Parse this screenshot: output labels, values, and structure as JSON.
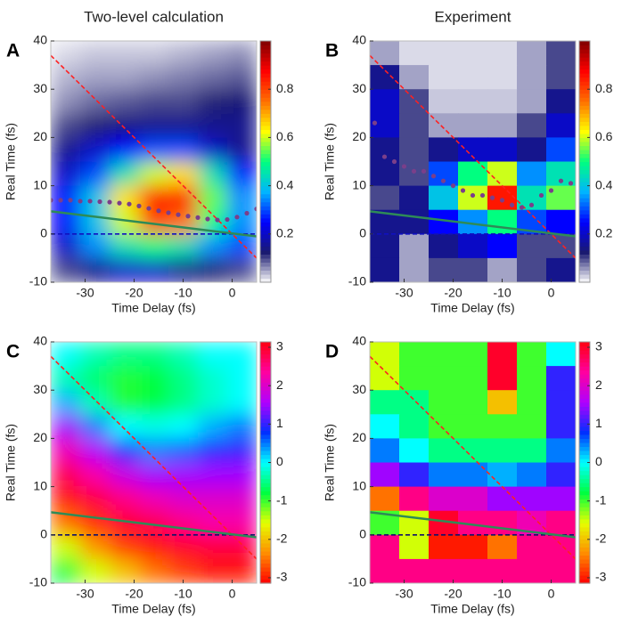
{
  "chart_data": [
    {
      "type": "heatmap",
      "panel": "A",
      "title": "Two-level calculation",
      "xlabel": "Time Delay (fs)",
      "ylabel": "Real Time (fs)",
      "xlim": [
        -37,
        5
      ],
      "ylim": [
        -10,
        40
      ],
      "xticks": [
        -30,
        -20,
        -10,
        0
      ],
      "yticks": [
        -10,
        0,
        10,
        20,
        30,
        40
      ],
      "x_edges": [
        -37,
        -31,
        -25,
        -19,
        -13,
        -7,
        -1,
        5
      ],
      "y_edges": [
        40,
        35,
        30,
        25,
        20,
        15,
        10,
        5,
        0,
        -5,
        -10
      ],
      "z": [
        [
          0.02,
          0.03,
          0.03,
          0.03,
          0.04,
          0.05,
          0.06
        ],
        [
          0.04,
          0.05,
          0.05,
          0.06,
          0.07,
          0.08,
          0.09
        ],
        [
          0.06,
          0.08,
          0.09,
          0.1,
          0.1,
          0.12,
          0.13
        ],
        [
          0.1,
          0.12,
          0.14,
          0.15,
          0.15,
          0.15,
          0.15
        ],
        [
          0.15,
          0.2,
          0.25,
          0.3,
          0.3,
          0.2,
          0.15
        ],
        [
          0.2,
          0.3,
          0.45,
          0.6,
          0.65,
          0.45,
          0.25
        ],
        [
          0.25,
          0.4,
          0.65,
          0.85,
          0.85,
          0.55,
          0.35
        ],
        [
          0.25,
          0.4,
          0.6,
          0.8,
          0.75,
          0.5,
          0.35
        ],
        [
          0.2,
          0.35,
          0.45,
          0.5,
          0.45,
          0.35,
          0.3
        ],
        [
          0.1,
          0.15,
          0.2,
          0.2,
          0.15,
          0.12,
          0.1
        ]
      ],
      "smooth": true,
      "clim": [
        0,
        1
      ],
      "cticks": [
        0.2,
        0.4,
        0.6,
        0.8
      ],
      "colormap": [
        "#ffffff",
        "#1a1a70",
        "#0000ff",
        "#00b4ff",
        "#00ff80",
        "#ffff00",
        "#ff7000",
        "#ff0000",
        "#800000"
      ],
      "lines": [
        {
          "style": "dash",
          "color": "#ff2020",
          "x": [
            -37,
            5
          ],
          "values": [
            37,
            -5
          ]
        },
        {
          "style": "dash",
          "color": "#1010c0",
          "x": [
            -37,
            5
          ],
          "values": [
            0,
            0
          ]
        },
        {
          "style": "solid",
          "color": "#2e8b57",
          "x": [
            -37,
            5
          ],
          "values": [
            4.7,
            -0.5
          ]
        },
        {
          "style": "dots",
          "color": "#7a3f8a",
          "x": [
            -37,
            -35,
            -33,
            -31,
            -29,
            -27,
            -25,
            -23,
            -21,
            -19,
            -17,
            -15,
            -13,
            -11,
            -9,
            -7,
            -5,
            -3,
            -1,
            1,
            3,
            5
          ],
          "values": [
            7,
            7,
            7,
            6.8,
            6.8,
            6.7,
            6.6,
            6.4,
            6.2,
            5.8,
            5.3,
            4.8,
            4.4,
            4,
            3.7,
            3.4,
            3.1,
            2.9,
            3,
            3.5,
            4.3,
            5.2
          ]
        }
      ]
    },
    {
      "type": "heatmap",
      "panel": "B",
      "title": "Experiment",
      "xlabel": "Time Delay (fs)",
      "ylabel": "Real Time (fs)",
      "xlim": [
        -37,
        5
      ],
      "ylim": [
        -10,
        40
      ],
      "xticks": [
        -30,
        -20,
        -10,
        0
      ],
      "yticks": [
        -10,
        0,
        10,
        20,
        30,
        40
      ],
      "x_edges": [
        -37,
        -31,
        -25,
        -19,
        -13,
        -7,
        -1,
        5
      ],
      "y_edges": [
        40,
        35,
        30,
        25,
        20,
        15,
        10,
        5,
        0,
        -5,
        -10
      ],
      "z": [
        [
          0.05,
          0.02,
          0.02,
          0.02,
          0.02,
          0.05,
          0.1
        ],
        [
          0.15,
          0.05,
          0.02,
          0.02,
          0.02,
          0.05,
          0.1
        ],
        [
          0.2,
          0.1,
          0.03,
          0.03,
          0.03,
          0.05,
          0.15
        ],
        [
          0.2,
          0.1,
          0.05,
          0.05,
          0.05,
          0.1,
          0.2
        ],
        [
          0.15,
          0.1,
          0.15,
          0.2,
          0.2,
          0.15,
          0.3
        ],
        [
          0.15,
          0.1,
          0.3,
          0.5,
          0.6,
          0.35,
          0.45
        ],
        [
          0.1,
          0.15,
          0.4,
          0.6,
          0.85,
          0.45,
          0.55
        ],
        [
          0.15,
          0.15,
          0.25,
          0.35,
          0.5,
          0.3,
          0.25
        ],
        [
          0.15,
          0.05,
          0.15,
          0.2,
          0.25,
          0.1,
          0.1
        ],
        [
          0.15,
          0.05,
          0.1,
          0.1,
          0.05,
          0.1,
          0.15
        ]
      ],
      "smooth": false,
      "clim": [
        0,
        1
      ],
      "cticks": [
        0.2,
        0.4,
        0.6,
        0.8
      ],
      "colormap": [
        "#ffffff",
        "#1a1a70",
        "#0000ff",
        "#00b4ff",
        "#00ff80",
        "#ffff00",
        "#ff7000",
        "#ff0000",
        "#800000"
      ],
      "lines": [
        {
          "style": "dash",
          "color": "#ff2020",
          "x": [
            -37,
            5
          ],
          "values": [
            37,
            -5
          ]
        },
        {
          "style": "dash",
          "color": "#1010c0",
          "x": [
            -37,
            5
          ],
          "values": [
            0,
            0
          ]
        },
        {
          "style": "solid",
          "color": "#2e8b57",
          "x": [
            -37,
            5
          ],
          "values": [
            4.7,
            -0.5
          ]
        },
        {
          "style": "dots",
          "color": "#7a3f8a",
          "x": [
            -36,
            -34,
            -32,
            -30,
            -28,
            -26,
            -24,
            -22,
            -20,
            -18,
            -16,
            -14,
            -12,
            -10,
            -8,
            -6,
            -4,
            -2,
            0,
            2,
            4
          ],
          "values": [
            23,
            16,
            15,
            14,
            13,
            13,
            12,
            11,
            10,
            9,
            8,
            8,
            7.5,
            7,
            6,
            5.5,
            6,
            8,
            9,
            11,
            10.5
          ]
        }
      ]
    },
    {
      "type": "heatmap",
      "panel": "C",
      "xlabel": "Time Delay (fs)",
      "ylabel": "Real Time (fs)",
      "xlim": [
        -37,
        5
      ],
      "ylim": [
        -10,
        40
      ],
      "xticks": [
        -30,
        -20,
        -10,
        0
      ],
      "yticks": [
        -10,
        0,
        10,
        20,
        30,
        40
      ],
      "x_edges": [
        -37,
        -31,
        -25,
        -19,
        -13,
        -7,
        -1,
        5
      ],
      "y_edges": [
        40,
        35,
        30,
        25,
        20,
        15,
        10,
        5,
        0,
        -5,
        -10
      ],
      "z": [
        [
          0,
          -0.3,
          -0.5,
          -0.5,
          -0.3,
          0,
          0
        ],
        [
          -0.3,
          -0.6,
          -0.9,
          -0.8,
          -0.5,
          -0.2,
          0
        ],
        [
          0.3,
          -0.3,
          -0.9,
          -0.8,
          -0.5,
          -0.2,
          0
        ],
        [
          1.5,
          0.5,
          0,
          -0.1,
          0,
          0.3,
          0.5
        ],
        [
          2.2,
          1.6,
          0.8,
          0.5,
          0.6,
          0.9,
          1
        ],
        [
          2.8,
          2.3,
          1.8,
          1.5,
          1.5,
          1.5,
          1.5
        ],
        [
          -3,
          2.9,
          2.5,
          2.2,
          2,
          2,
          2
        ],
        [
          -2.5,
          -2.9,
          3,
          2.8,
          2.5,
          2.3,
          2.3
        ],
        [
          -1.5,
          -2.3,
          -2.8,
          -3,
          3,
          2.9,
          2.9
        ],
        [
          -0.8,
          -1.5,
          -2,
          -2.5,
          -2.8,
          -3,
          -3
        ]
      ],
      "smooth": true,
      "clim": [
        -3.14,
        3.14
      ],
      "cticks": [
        -3,
        -2,
        -1,
        0,
        1,
        2,
        3
      ],
      "colormap": [
        "#ff0000",
        "#ff8c00",
        "#e6ff00",
        "#00ff40",
        "#00ffff",
        "#0030ff",
        "#b000ff",
        "#ff00a0",
        "#ff0010"
      ],
      "lines": [
        {
          "style": "dash",
          "color": "#ff2020",
          "x": [
            -37,
            5
          ],
          "values": [
            37,
            -5
          ]
        },
        {
          "style": "dash",
          "color": "#10106a",
          "x": [
            -37,
            5
          ],
          "values": [
            0,
            0
          ]
        },
        {
          "style": "solid",
          "color": "#2e8b57",
          "x": [
            -37,
            5
          ],
          "values": [
            4.7,
            -0.5
          ]
        }
      ]
    },
    {
      "type": "heatmap",
      "panel": "D",
      "xlabel": "Time Delay (fs)",
      "ylabel": "Real Time (fs)",
      "xlim": [
        -37,
        5
      ],
      "ylim": [
        -10,
        40
      ],
      "xticks": [
        -30,
        -20,
        -10,
        0
      ],
      "yticks": [
        -10,
        0,
        10,
        20,
        30,
        40
      ],
      "x_edges": [
        -37,
        -31,
        -25,
        -19,
        -13,
        -7,
        -1,
        5
      ],
      "y_edges": [
        40,
        35,
        30,
        25,
        20,
        15,
        10,
        5,
        0,
        -5,
        -10
      ],
      "z": [
        [
          -1.5,
          -1,
          -1,
          -1,
          3,
          -1,
          0
        ],
        [
          -1.5,
          -1,
          -1,
          -1,
          3,
          -1,
          1
        ],
        [
          -0.5,
          -0.5,
          -1,
          -1,
          -2,
          -1,
          1
        ],
        [
          0,
          -0.5,
          -1,
          -1,
          -1,
          -1,
          1
        ],
        [
          0.5,
          0,
          -0.5,
          -0.5,
          -0.5,
          -0.5,
          0.5
        ],
        [
          1.5,
          1,
          0.5,
          0.5,
          0.3,
          0.5,
          1
        ],
        [
          -2.5,
          2.5,
          2,
          2,
          1.5,
          1.5,
          1.5
        ],
        [
          -1,
          -1.5,
          3,
          2.5,
          2.5,
          2.2,
          2.5
        ],
        [
          2.5,
          -1.5,
          -3,
          -3,
          -2.5,
          2.5,
          2.5
        ],
        [
          2.5,
          2.5,
          2.5,
          2.5,
          2.5,
          2.5,
          2.5
        ]
      ],
      "smooth": false,
      "clim": [
        -3.14,
        3.14
      ],
      "cticks": [
        -3,
        -2,
        -1,
        0,
        1,
        2,
        3
      ],
      "colormap": [
        "#ff0000",
        "#ff8c00",
        "#e6ff00",
        "#00ff40",
        "#00ffff",
        "#0030ff",
        "#b000ff",
        "#ff00a0",
        "#ff0010"
      ],
      "lines": [
        {
          "style": "dash",
          "color": "#ff2020",
          "x": [
            -37,
            5
          ],
          "values": [
            37,
            -5
          ]
        },
        {
          "style": "dash",
          "color": "#10106a",
          "x": [
            -37,
            5
          ],
          "values": [
            0,
            0
          ]
        },
        {
          "style": "solid",
          "color": "#2e8b57",
          "x": [
            -37,
            5
          ],
          "values": [
            4.7,
            -0.5
          ]
        }
      ]
    }
  ]
}
